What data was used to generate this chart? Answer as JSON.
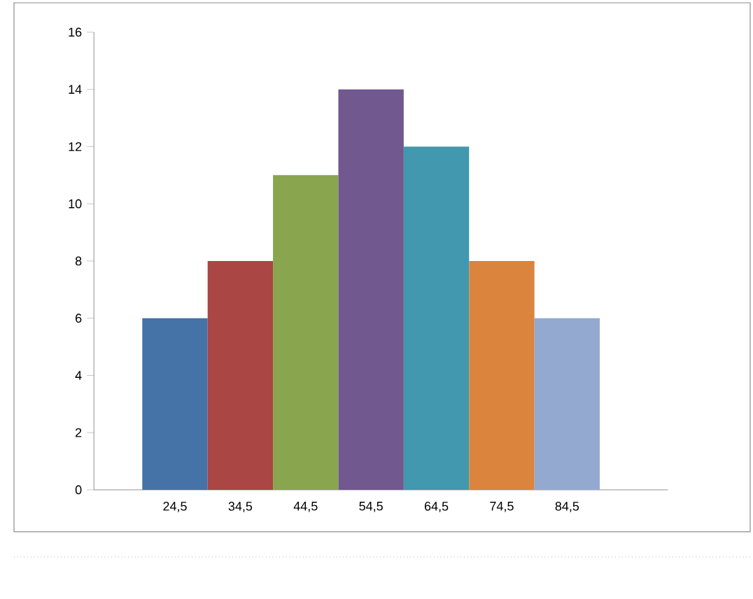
{
  "chart_data": {
    "type": "bar",
    "categories": [
      "24,5",
      "34,5",
      "44,5",
      "54,5",
      "64,5",
      "74,5",
      "84,5"
    ],
    "values": [
      6,
      8,
      11,
      14,
      12,
      8,
      6
    ],
    "colors": [
      "#4572a7",
      "#aa4643",
      "#89a54e",
      "#71588f",
      "#4198af",
      "#db843d",
      "#93a9cf"
    ],
    "ylim": [
      0,
      16
    ],
    "yticks": [
      0,
      2,
      4,
      6,
      8,
      10,
      12,
      14,
      16
    ]
  }
}
